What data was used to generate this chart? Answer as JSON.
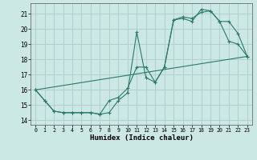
{
  "xlabel": "Humidex (Indice chaleur)",
  "bg_color": "#cce8e4",
  "grid_color": "#aacccc",
  "line_color": "#2a7a6a",
  "xlim": [
    -0.5,
    23.5
  ],
  "ylim": [
    13.7,
    21.7
  ],
  "yticks": [
    14,
    15,
    16,
    17,
    18,
    19,
    20,
    21
  ],
  "xticks": [
    0,
    1,
    2,
    3,
    4,
    5,
    6,
    7,
    8,
    9,
    10,
    11,
    12,
    13,
    14,
    15,
    16,
    17,
    18,
    19,
    20,
    21,
    22,
    23
  ],
  "line1_x": [
    0,
    1,
    2,
    3,
    4,
    5,
    6,
    7,
    8,
    9,
    10,
    11,
    12,
    13,
    14,
    15,
    16,
    17,
    18,
    19,
    20,
    21,
    22,
    23
  ],
  "line1_y": [
    16.0,
    15.3,
    14.6,
    14.5,
    14.5,
    14.5,
    14.5,
    14.4,
    14.5,
    15.3,
    15.8,
    19.8,
    16.8,
    16.5,
    17.5,
    20.6,
    20.8,
    20.7,
    21.1,
    21.2,
    20.5,
    20.5,
    19.7,
    18.2
  ],
  "line2_x": [
    0,
    1,
    2,
    3,
    4,
    5,
    6,
    7,
    8,
    9,
    10,
    11,
    12,
    13,
    14,
    15,
    16,
    17,
    18,
    19,
    20,
    21,
    22,
    23
  ],
  "line2_y": [
    16.0,
    15.3,
    14.6,
    14.5,
    14.5,
    14.5,
    14.5,
    14.4,
    15.3,
    15.5,
    16.1,
    17.5,
    17.5,
    16.5,
    17.5,
    20.6,
    20.7,
    20.5,
    21.3,
    21.2,
    20.5,
    19.2,
    19.0,
    18.2
  ],
  "line3_x": [
    0,
    23
  ],
  "line3_y": [
    16.0,
    18.2
  ]
}
